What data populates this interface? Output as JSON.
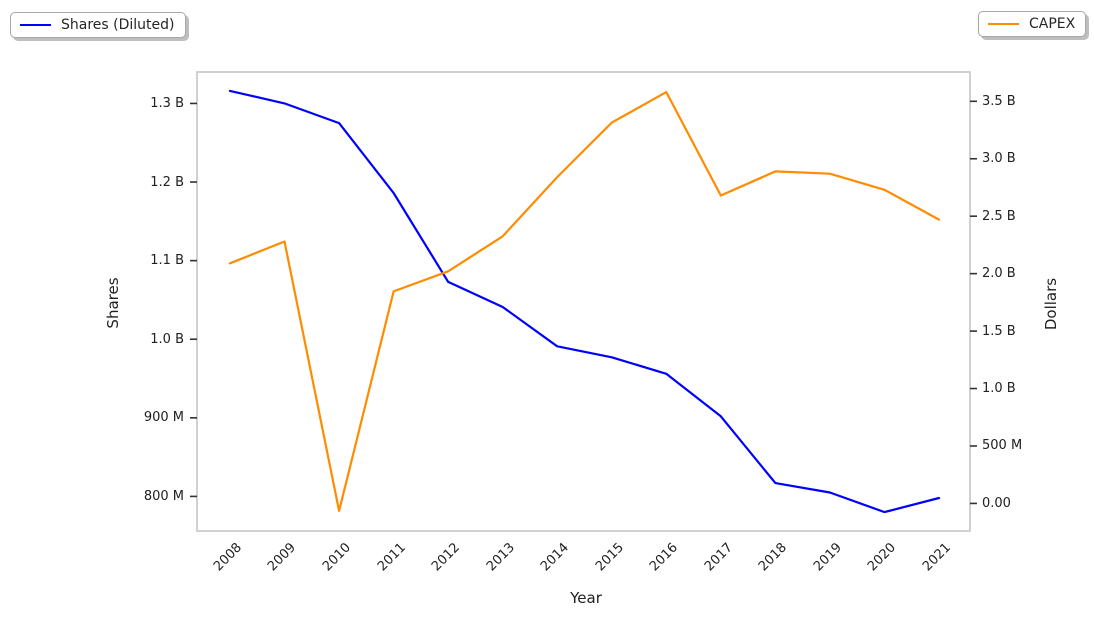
{
  "chart_data": {
    "type": "line",
    "x": [
      "2008",
      "2009",
      "2010",
      "2011",
      "2012",
      "2013",
      "2014",
      "2015",
      "2016",
      "2017",
      "2018",
      "2019",
      "2020",
      "2021"
    ],
    "xlabel": "Year",
    "units": "millions",
    "series": [
      {
        "name": "Shares (Diluted)",
        "axis": "left",
        "color": "#0000ff",
        "values": [
          1316,
          1300,
          1275,
          1186,
          1073,
          1041,
          991,
          977,
          956,
          902,
          817,
          805,
          780,
          798
        ]
      },
      {
        "name": "CAPEX",
        "axis": "right",
        "color": "#ff8c00",
        "values": [
          2090,
          2280,
          -65,
          1845,
          2020,
          2325,
          2840,
          3315,
          3580,
          2680,
          2890,
          2870,
          2730,
          2470
        ]
      }
    ],
    "left_axis": {
      "label": "Shares",
      "range": [
        756,
        1340
      ],
      "ticks": [
        {
          "label": "800 M",
          "value": 800
        },
        {
          "label": "900 M",
          "value": 900
        },
        {
          "label": "1.0 B",
          "value": 1000
        },
        {
          "label": "1.1 B",
          "value": 1100
        },
        {
          "label": "1.2 B",
          "value": 1200
        },
        {
          "label": "1.3 B",
          "value": 1300
        }
      ]
    },
    "right_axis": {
      "label": "Dollars",
      "range": [
        -240,
        3755
      ],
      "ticks": [
        {
          "label": "0.00",
          "value": 0
        },
        {
          "label": "500 M",
          "value": 500
        },
        {
          "label": "1.0 B",
          "value": 1000
        },
        {
          "label": "1.5 B",
          "value": 1500
        },
        {
          "label": "2.0 B",
          "value": 2000
        },
        {
          "label": "2.5 B",
          "value": 2500
        },
        {
          "label": "3.0 B",
          "value": 3000
        },
        {
          "label": "3.5 B",
          "value": 3500
        }
      ]
    },
    "legend_position": [
      "upper-left-outside",
      "upper-right-outside"
    ],
    "grid": false,
    "spine_color": "#cccccc",
    "tick_color": "#333333"
  }
}
